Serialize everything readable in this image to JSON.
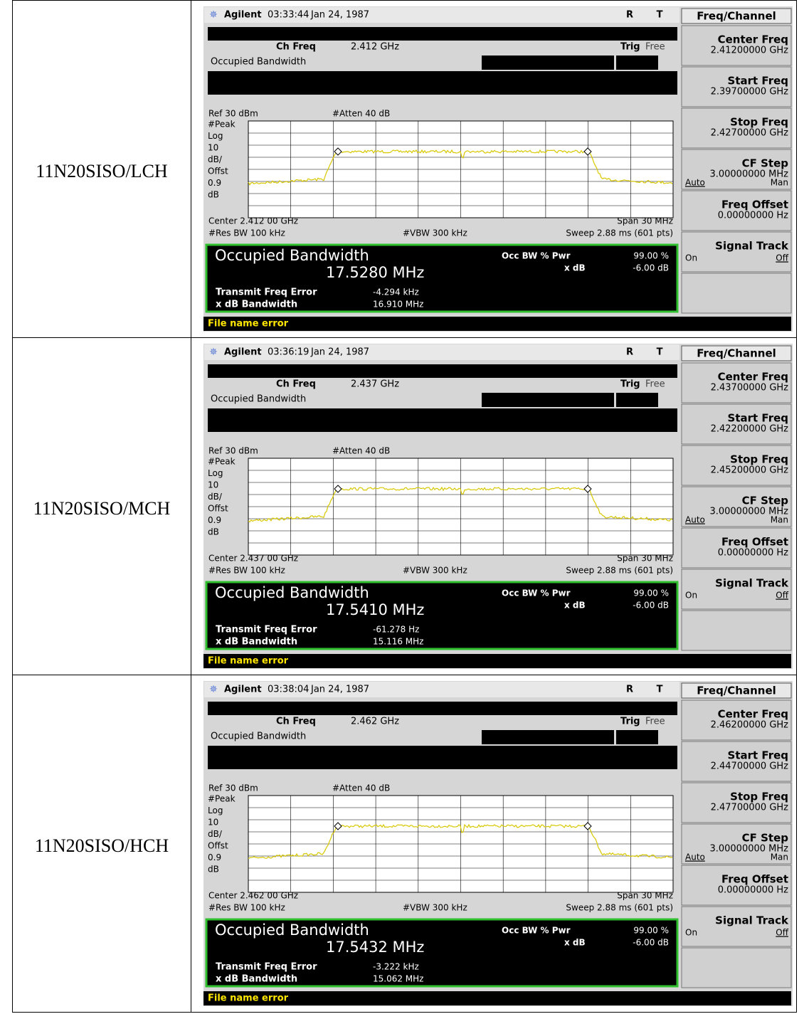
{
  "table": {
    "rows": [
      {
        "label": "11N20SISO/LCH",
        "screen": {
          "brand": "Agilent",
          "time": "03:33:44",
          "date": "Jan 24, 1987",
          "flags": [
            "R",
            "T"
          ],
          "menu_title": "Freq/Channel",
          "ch_freq_label": "Ch Freq",
          "ch_freq": "2.412 GHz",
          "trig_label": "Trig",
          "trig": "Free",
          "measurement": "Occupied Bandwidth",
          "ref": "Ref 30 dBm",
          "atten": "#Atten 40 dB",
          "scale_labels": [
            "#Peak",
            "Log",
            "10",
            "dB/",
            "Offst",
            "0.9",
            "dB"
          ],
          "center": "Center 2.412 00 GHz",
          "span": "Span 30 MHz",
          "res_bw": "#Res BW 100 kHz",
          "vbw": "#VBW 300 kHz",
          "sweep": "Sweep 2.88 ms (601 pts)",
          "result": {
            "title": "Occupied Bandwidth",
            "value": "17.5280 MHz",
            "pwr_label": "Occ BW % Pwr",
            "pwr": "99.00 %",
            "xdb_label": "x dB",
            "xdb": "-6.00 dB",
            "freq_error_label": "Transmit Freq Error",
            "freq_error": "-4.294 kHz",
            "xdb_bw_label": "x dB Bandwidth",
            "xdb_bw": "16.910 MHz"
          },
          "softkeys": [
            {
              "title": "Center Freq",
              "value": "2.41200000 GHz"
            },
            {
              "title": "Start Freq",
              "value": "2.39700000 GHz"
            },
            {
              "title": "Stop Freq",
              "value": "2.42700000 GHz"
            },
            {
              "title": "CF Step",
              "value": "3.00000000 MHz",
              "options": [
                "Auto",
                "Man"
              ]
            },
            {
              "title": "Freq Offset",
              "value": "0.00000000  Hz"
            },
            {
              "title": "Signal Track",
              "options": [
                "On",
                "Off"
              ]
            }
          ],
          "status": "File name error"
        }
      },
      {
        "label": "11N20SISO/MCH",
        "screen": {
          "brand": "Agilent",
          "time": "03:36:19",
          "date": "Jan 24, 1987",
          "flags": [
            "R",
            "T"
          ],
          "menu_title": "Freq/Channel",
          "ch_freq_label": "Ch Freq",
          "ch_freq": "2.437 GHz",
          "trig_label": "Trig",
          "trig": "Free",
          "measurement": "Occupied Bandwidth",
          "ref": "Ref 30 dBm",
          "atten": "#Atten 40 dB",
          "scale_labels": [
            "#Peak",
            "Log",
            "10",
            "dB/",
            "Offst",
            "0.9",
            "dB"
          ],
          "center": "Center 2.437 00 GHz",
          "span": "Span 30 MHz",
          "res_bw": "#Res BW 100 kHz",
          "vbw": "#VBW 300 kHz",
          "sweep": "Sweep 2.88 ms (601 pts)",
          "result": {
            "title": "Occupied Bandwidth",
            "value": "17.5410 MHz",
            "pwr_label": "Occ BW % Pwr",
            "pwr": "99.00 %",
            "xdb_label": "x dB",
            "xdb": "-6.00 dB",
            "freq_error_label": "Transmit Freq Error",
            "freq_error": "-61.278 Hz",
            "xdb_bw_label": "x dB Bandwidth",
            "xdb_bw": "15.116 MHz"
          },
          "softkeys": [
            {
              "title": "Center Freq",
              "value": "2.43700000 GHz"
            },
            {
              "title": "Start Freq",
              "value": "2.42200000 GHz"
            },
            {
              "title": "Stop Freq",
              "value": "2.45200000 GHz"
            },
            {
              "title": "CF Step",
              "value": "3.00000000 MHz",
              "options": [
                "Auto",
                "Man"
              ]
            },
            {
              "title": "Freq Offset",
              "value": "0.00000000  Hz"
            },
            {
              "title": "Signal Track",
              "options": [
                "On",
                "Off"
              ]
            }
          ],
          "status": "File name error"
        }
      },
      {
        "label": "11N20SISO/HCH",
        "screen": {
          "brand": "Agilent",
          "time": "03:38:04",
          "date": "Jan 24, 1987",
          "flags": [
            "R",
            "T"
          ],
          "menu_title": "Freq/Channel",
          "ch_freq_label": "Ch Freq",
          "ch_freq": "2.462 GHz",
          "trig_label": "Trig",
          "trig": "Free",
          "measurement": "Occupied Bandwidth",
          "ref": "Ref 30 dBm",
          "atten": "#Atten 40 dB",
          "scale_labels": [
            "#Peak",
            "Log",
            "10",
            "dB/",
            "Offst",
            "0.9",
            "dB"
          ],
          "center": "Center 2.462 00 GHz",
          "span": "Span 30 MHz",
          "res_bw": "#Res BW 100 kHz",
          "vbw": "#VBW 300 kHz",
          "sweep": "Sweep 2.88 ms (601 pts)",
          "result": {
            "title": "Occupied Bandwidth",
            "value": "17.5432 MHz",
            "pwr_label": "Occ BW % Pwr",
            "pwr": "99.00 %",
            "xdb_label": "x dB",
            "xdb": "-6.00 dB",
            "freq_error_label": "Transmit Freq Error",
            "freq_error": "-3.222 kHz",
            "xdb_bw_label": "x dB Bandwidth",
            "xdb_bw": "15.062 MHz"
          },
          "softkeys": [
            {
              "title": "Center Freq",
              "value": "2.46200000 GHz"
            },
            {
              "title": "Start Freq",
              "value": "2.44700000 GHz"
            },
            {
              "title": "Stop Freq",
              "value": "2.47700000 GHz"
            },
            {
              "title": "CF Step",
              "value": "3.00000000 MHz",
              "options": [
                "Auto",
                "Man"
              ]
            },
            {
              "title": "Freq Offset",
              "value": "0.00000000  Hz"
            },
            {
              "title": "Signal Track",
              "options": [
                "On",
                "Off"
              ]
            }
          ],
          "status": "File name error"
        }
      }
    ]
  }
}
